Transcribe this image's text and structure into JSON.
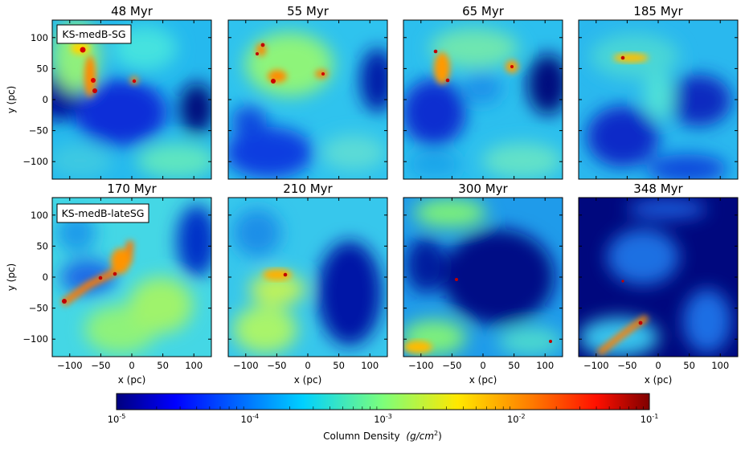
{
  "figure": {
    "rows": [
      {
        "label": "KS-medB-SG",
        "panels": [
          {
            "time": "48 Myr"
          },
          {
            "time": "55 Myr"
          },
          {
            "time": "65 Myr"
          },
          {
            "time": "185 Myr"
          }
        ]
      },
      {
        "label": "KS-medB-lateSG",
        "panels": [
          {
            "time": "170 Myr"
          },
          {
            "time": "210 Myr"
          },
          {
            "time": "300 Myr"
          },
          {
            "time": "348 Myr"
          }
        ]
      }
    ],
    "x_axis_label": "x (pc)",
    "y_axis_label": "y (pc)",
    "x_ticks": [
      "−100",
      "−50",
      "0",
      "50",
      "100"
    ],
    "y_ticks": [
      "100",
      "50",
      "0",
      "−50",
      "−100"
    ],
    "colorbar": {
      "label_text": "Column Density",
      "label_units": "(g/cm",
      "label_units_exp": "2",
      "label_close": ")",
      "tick_base": "10",
      "tick_exponents": [
        "-5",
        "-4",
        "-3",
        "-2",
        "-1"
      ],
      "colors": [
        "#00007f",
        "#0000ff",
        "#007fff",
        "#00ffff",
        "#7fff7f",
        "#ffff00",
        "#ff7f00",
        "#ff0000",
        "#7f0000"
      ]
    }
  }
}
